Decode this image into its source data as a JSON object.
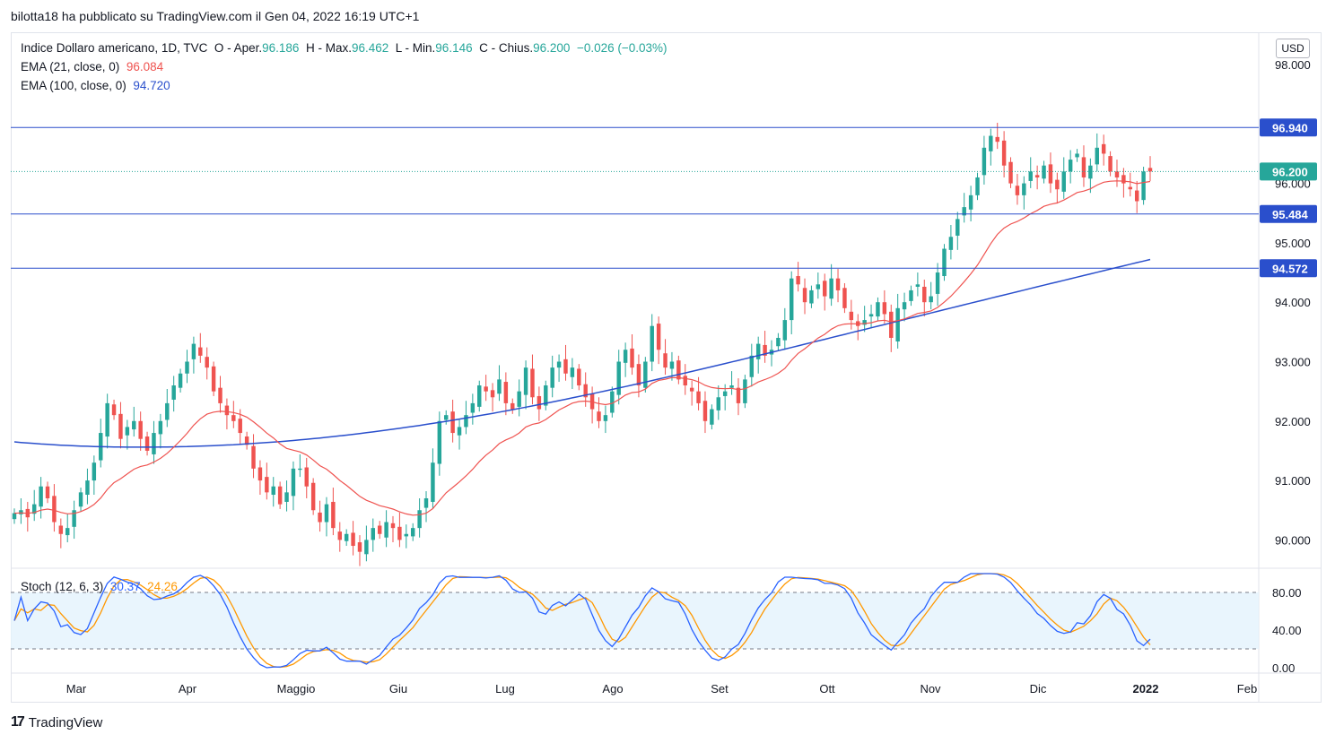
{
  "byline": "bilotta18 ha pubblicato su TradingView.com il Gen 04, 2022 16:19 UTC+1",
  "legend": {
    "symbol": "Indice Dollaro americano, 1D, TVC",
    "open_label": "O - Aper.",
    "open": "96.186",
    "high_label": "H - Max.",
    "high": "96.462",
    "low_label": "L - Min.",
    "low": "96.146",
    "close_label": "C - Chius.",
    "close": "96.200",
    "change": "−0.026 (−0.03%)",
    "ema21_label": "EMA (21, close, 0)",
    "ema21_value": "96.084",
    "ema100_label": "EMA (100, close, 0)",
    "ema100_value": "94.720",
    "stoch_label": "Stoch (12, 6, 3)",
    "stoch_k": "30.37",
    "stoch_d": "24.26"
  },
  "currency": "USD",
  "footer": {
    "logo_mark": "17",
    "brand": "TradingView"
  },
  "colors": {
    "up": "#26a69a",
    "down": "#ef5350",
    "ema21": "#ef5350",
    "ema100": "#2a4fcc",
    "hline": "#2a4fcc",
    "stoch_k": "#2962ff",
    "stoch_d": "#ff9800",
    "stoch_band": "#e3f2fd"
  },
  "chart_data": [
    {
      "type": "candlestick",
      "title": "Indice Dollaro americano, 1D, TVC",
      "x_ticks": [
        "Mar",
        "Apr",
        "Maggio",
        "Giu",
        "Lug",
        "Ago",
        "Set",
        "Ott",
        "Nov",
        "Dic",
        "2022",
        "Feb"
      ],
      "y_ticks": [
        "90.000",
        "91.000",
        "92.000",
        "93.000",
        "94.000",
        "95.000",
        "96.000",
        "97.000",
        "98.000"
      ],
      "ylim": [
        89.6,
        98.6
      ],
      "horizontal_levels": [
        {
          "label": "96.940",
          "value": 96.94
        },
        {
          "label": "95.484",
          "value": 95.484
        },
        {
          "label": "94.572",
          "value": 94.572
        }
      ],
      "last_price": {
        "label": "96.200",
        "value": 96.2
      },
      "close_series": [
        90.45,
        90.5,
        90.38,
        90.6,
        90.9,
        90.7,
        90.3,
        90.1,
        90.2,
        90.5,
        90.8,
        91.0,
        91.3,
        91.8,
        92.3,
        92.1,
        91.7,
        91.9,
        92.0,
        91.7,
        91.5,
        91.8,
        92.0,
        92.3,
        92.6,
        92.8,
        93.0,
        93.3,
        93.1,
        92.9,
        92.5,
        92.3,
        92.1,
        92.0,
        91.8,
        91.6,
        91.2,
        91.0,
        90.8,
        90.9,
        90.6,
        90.8,
        91.2,
        91.2,
        90.9,
        90.5,
        90.3,
        90.6,
        90.2,
        90.0,
        90.1,
        89.9,
        89.8,
        90.0,
        90.2,
        90.1,
        90.3,
        90.2,
        90.0,
        90.1,
        90.2,
        90.5,
        90.7,
        91.3,
        92.0,
        92.1,
        91.8,
        91.9,
        92.1,
        92.3,
        92.6,
        92.5,
        92.4,
        92.7,
        92.3,
        92.2,
        92.5,
        92.9,
        92.4,
        92.2,
        92.6,
        92.9,
        93.0,
        92.8,
        92.9,
        92.6,
        92.4,
        92.2,
        92.0,
        92.1,
        92.5,
        93.0,
        93.2,
        92.9,
        92.6,
        93.0,
        93.6,
        93.2,
        92.9,
        93.0,
        92.7,
        92.6,
        92.5,
        92.3,
        92.0,
        92.2,
        92.4,
        92.5,
        92.6,
        92.3,
        92.7,
        93.1,
        93.3,
        93.1,
        93.2,
        93.4,
        93.7,
        94.4,
        94.3,
        94.0,
        94.2,
        94.3,
        94.1,
        94.4,
        94.2,
        93.9,
        93.7,
        93.6,
        93.7,
        93.8,
        94.0,
        93.8,
        93.4,
        93.9,
        94.0,
        94.2,
        94.3,
        94.0,
        94.1,
        94.5,
        94.9,
        95.1,
        95.4,
        95.6,
        95.8,
        96.1,
        96.6,
        96.8,
        96.7,
        96.3,
        96.0,
        95.8,
        96.0,
        96.2,
        96.1,
        96.3,
        96.0,
        95.9,
        96.2,
        96.4,
        96.5,
        96.1,
        96.3,
        96.6,
        96.5,
        96.2,
        96.1,
        96.0,
        95.9,
        95.7,
        96.2,
        96.2
      ]
    },
    {
      "type": "line",
      "title": "Stoch (12, 6, 3)",
      "y_ticks": [
        "0.00",
        "40.00",
        "80.00"
      ],
      "ylim": [
        -5,
        100
      ],
      "band": [
        20,
        80
      ],
      "series": [
        {
          "name": "%K",
          "last": 30.37
        },
        {
          "name": "%D",
          "last": 24.26
        }
      ]
    }
  ]
}
